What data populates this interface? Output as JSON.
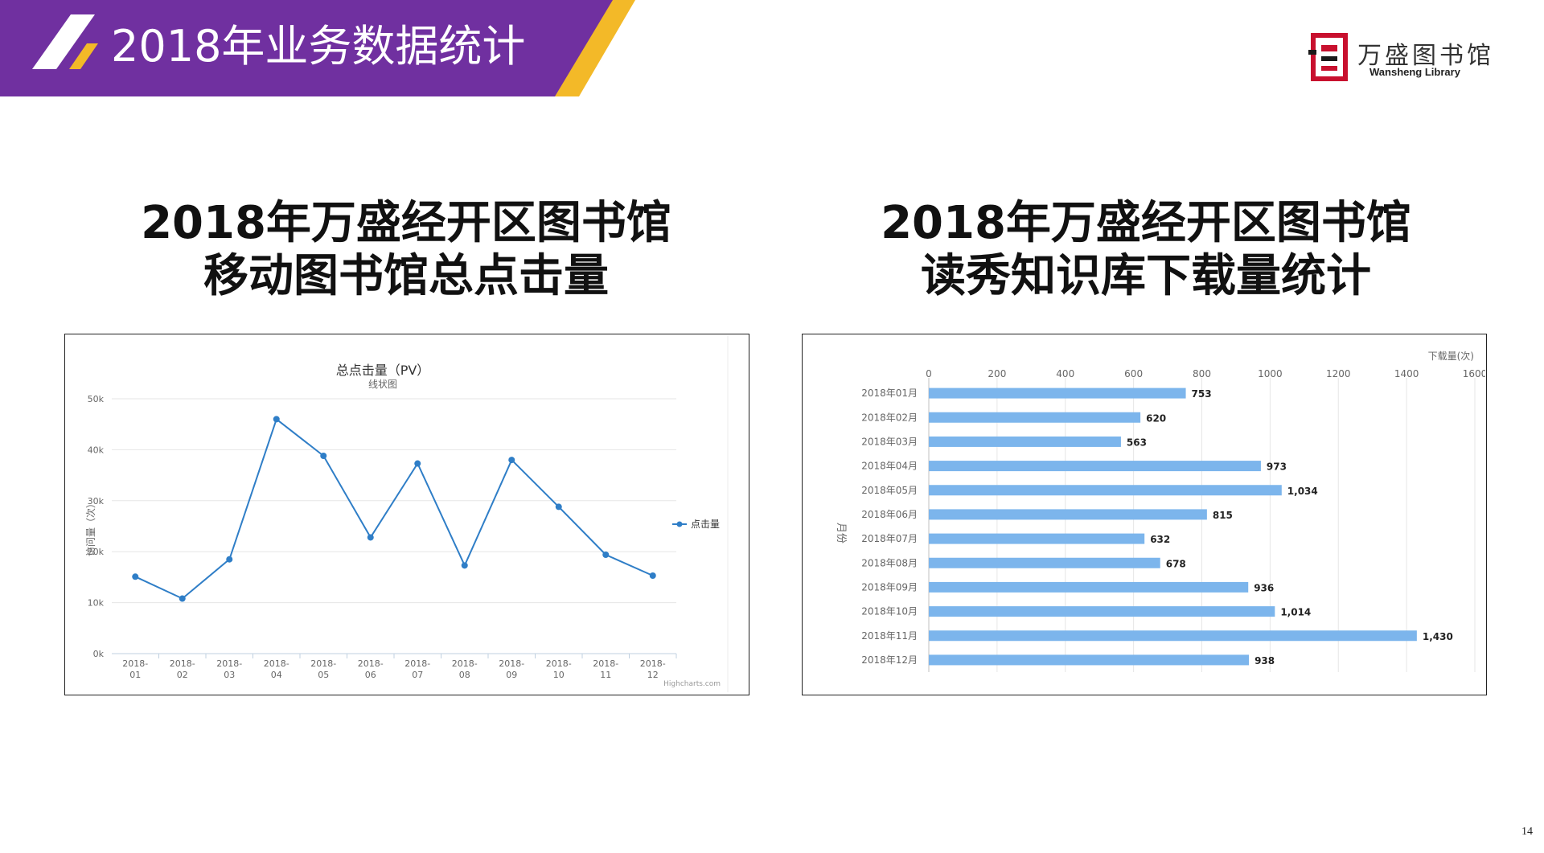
{
  "header": {
    "title": "2018年业务数据统计",
    "colors": {
      "purple": "#7030a0",
      "gold": "#f3b928"
    }
  },
  "logo": {
    "cn": "万盛图书馆",
    "en": "Wansheng Library"
  },
  "left_title": {
    "line1": "2018年万盛经开区图书馆",
    "line2": "移动图书馆总点击量"
  },
  "right_title": {
    "line1": "2018年万盛经开区图书馆",
    "line2": "读秀知识库下载量统计"
  },
  "page_number": "14",
  "chart_data": [
    {
      "type": "line",
      "title": "总点击量（PV）",
      "subtitle": "线状图",
      "ylabel": "访问量（次）",
      "categories": [
        "2018-01",
        "2018-02",
        "2018-03",
        "2018-04",
        "2018-05",
        "2018-06",
        "2018-07",
        "2018-08",
        "2018-09",
        "2018-10",
        "2018-11",
        "2018-12"
      ],
      "series": [
        {
          "name": "点击量",
          "values": [
            15100,
            10800,
            18500,
            46000,
            38800,
            22800,
            37300,
            17300,
            38000,
            28800,
            19400,
            15300
          ]
        }
      ],
      "ylim": [
        0,
        50000
      ],
      "yticks": [
        "0k",
        "10k",
        "20k",
        "30k",
        "40k",
        "50k"
      ],
      "credit": "Highcharts.com",
      "color": "#2f7ec7",
      "legend": "right",
      "grid": true
    },
    {
      "type": "bar",
      "orientation": "horizontal",
      "ylabel": "月份",
      "xlabel": "下载量(次)",
      "categories": [
        "2018年01月",
        "2018年02月",
        "2018年03月",
        "2018年04月",
        "2018年05月",
        "2018年06月",
        "2018年07月",
        "2018年08月",
        "2018年09月",
        "2018年10月",
        "2018年11月",
        "2018年12月"
      ],
      "values": [
        753,
        620,
        563,
        973,
        1034,
        815,
        632,
        678,
        936,
        1014,
        1430,
        938
      ],
      "value_labels": [
        "753",
        "620",
        "563",
        "973",
        "1,034",
        "815",
        "632",
        "678",
        "936",
        "1,014",
        "1,430",
        "938"
      ],
      "xlim": [
        0,
        1600
      ],
      "xticks": [
        "0",
        "200",
        "400",
        "600",
        "800",
        "1000",
        "1200",
        "1400",
        "1600"
      ],
      "color": "#7cb5ec",
      "grid": true
    }
  ]
}
